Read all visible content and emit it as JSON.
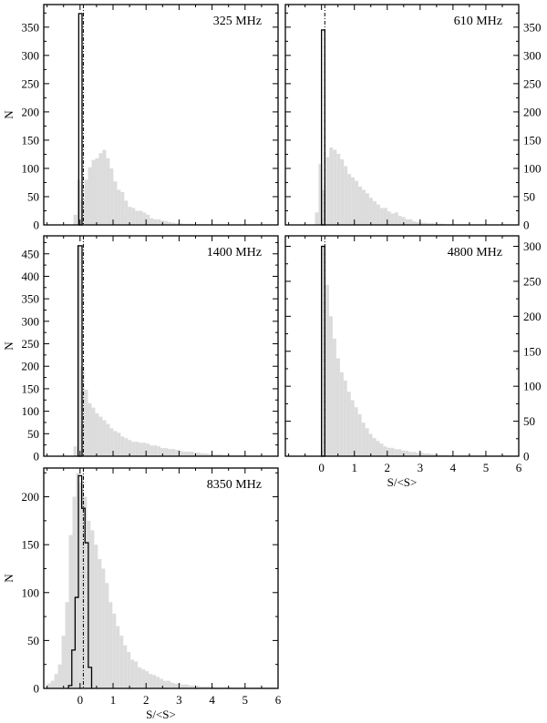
{
  "chart_data": [
    {
      "type": "bar",
      "label": "325 MHz",
      "ylabel": "N",
      "xlabel": "",
      "xlim": [
        -1.1,
        6
      ],
      "ylim": [
        0,
        390
      ],
      "yticks": [
        0,
        50,
        100,
        150,
        200,
        250,
        300,
        350
      ],
      "ytick_side": "left",
      "bin_width": 0.11,
      "hist_start": -0.2,
      "background_hist": [
        18,
        80,
        45,
        80,
        102,
        115,
        118,
        127,
        133,
        118,
        100,
        77,
        62,
        58,
        43,
        32,
        30,
        25,
        25,
        22,
        18,
        12,
        10,
        10,
        8,
        7,
        5,
        4,
        3,
        3,
        2,
        2,
        2,
        1,
        1,
        1,
        1,
        1,
        1
      ],
      "foreground_hist": {
        "x": [
          -0.04,
          0.06
        ],
        "value": 374
      },
      "dashed_line_x": 0.1
    },
    {
      "type": "bar",
      "label": "610 MHz",
      "ylabel": "",
      "xlabel": "",
      "xlim": [
        -1.1,
        6
      ],
      "ylim": [
        0,
        390
      ],
      "yticks": [
        0,
        50,
        100,
        150,
        200,
        250,
        300,
        350
      ],
      "ytick_side": "right",
      "bin_width": 0.11,
      "hist_start": -0.2,
      "background_hist": [
        22,
        108,
        62,
        120,
        137,
        133,
        126,
        116,
        104,
        90,
        84,
        78,
        68,
        62,
        56,
        48,
        42,
        36,
        30,
        30,
        24,
        20,
        22,
        16,
        14,
        10,
        10,
        6,
        5,
        4,
        4,
        3,
        3,
        2,
        2,
        2,
        1,
        1,
        1
      ],
      "foreground_hist": {
        "x": [
          0.0,
          0.1
        ],
        "value": 345
      },
      "dashed_line_x": 0.1
    },
    {
      "type": "bar",
      "label": "1400 MHz",
      "ylabel": "N",
      "xlabel": "",
      "xlim": [
        -1.1,
        6
      ],
      "ylim": [
        0,
        490
      ],
      "yticks": [
        0,
        50,
        100,
        150,
        200,
        250,
        300,
        350,
        400,
        450
      ],
      "ytick_side": "left",
      "bin_width": 0.11,
      "hist_start": -0.2,
      "background_hist": [
        22,
        468,
        200,
        148,
        118,
        108,
        95,
        88,
        80,
        72,
        62,
        56,
        52,
        44,
        40,
        36,
        32,
        32,
        30,
        30,
        28,
        24,
        24,
        22,
        18,
        18,
        16,
        16,
        14,
        12,
        10,
        10,
        10,
        8,
        8,
        6,
        6,
        5,
        4,
        4,
        4,
        3,
        3,
        2,
        2,
        2,
        2,
        1,
        1,
        1
      ],
      "foreground_hist": {
        "x": [
          -0.06,
          0.06
        ],
        "value": 468
      },
      "dashed_line_x": 0.1
    },
    {
      "type": "bar",
      "label": "4800 MHz",
      "ylabel": "",
      "xlabel": "S/<S>",
      "xlim": [
        -1.1,
        6
      ],
      "ylim": [
        0,
        315
      ],
      "yticks": [
        0,
        50,
        100,
        150,
        200,
        250,
        300
      ],
      "xticks": [
        0,
        1,
        2,
        3,
        4,
        5,
        6
      ],
      "ytick_side": "right",
      "bin_width": 0.11,
      "hist_start": -0.1,
      "background_hist": [
        0,
        300,
        245,
        200,
        168,
        140,
        120,
        108,
        92,
        80,
        70,
        60,
        48,
        40,
        32,
        26,
        22,
        18,
        14,
        12,
        12,
        10,
        10,
        8,
        8,
        6,
        6,
        5,
        5,
        4,
        4,
        3,
        3,
        2,
        2,
        2,
        1,
        1,
        1,
        1,
        1,
        1,
        1,
        1,
        1,
        1,
        1,
        1,
        1,
        1,
        1,
        1
      ],
      "foreground_hist": {
        "x": [
          0.0,
          0.1
        ],
        "value": 300
      },
      "dashed_line_x": 0.1
    },
    {
      "type": "bar",
      "label": "8350 MHz",
      "ylabel": "N",
      "xlabel": "S/<S>",
      "xlim": [
        -1.1,
        6
      ],
      "ylim": [
        0,
        230
      ],
      "yticks": [
        0,
        50,
        100,
        150,
        200
      ],
      "xticks": [
        0,
        1,
        2,
        3,
        4,
        5,
        6
      ],
      "ytick_side": "left",
      "bin_width": 0.11,
      "hist_start": -1.0,
      "background_hist": [
        5,
        8,
        15,
        25,
        55,
        90,
        160,
        200,
        225,
        215,
        200,
        175,
        165,
        150,
        135,
        125,
        110,
        90,
        78,
        65,
        55,
        45,
        38,
        30,
        28,
        22,
        20,
        18,
        15,
        14,
        12,
        10,
        8,
        8,
        6,
        5,
        5,
        4,
        4,
        3,
        3,
        3,
        2,
        2,
        2,
        2,
        1,
        1,
        1,
        1,
        1,
        1,
        1,
        1,
        1,
        1,
        1,
        1,
        1,
        1,
        1,
        1,
        1
      ],
      "foreground_steps": [
        [
          -0.35,
          3
        ],
        [
          -0.25,
          40
        ],
        [
          -0.15,
          95
        ],
        [
          -0.05,
          222
        ],
        [
          0.05,
          188
        ],
        [
          0.15,
          152
        ],
        [
          0.25,
          22
        ],
        [
          0.35,
          0
        ]
      ],
      "dashed_line_x": 0.1
    }
  ]
}
